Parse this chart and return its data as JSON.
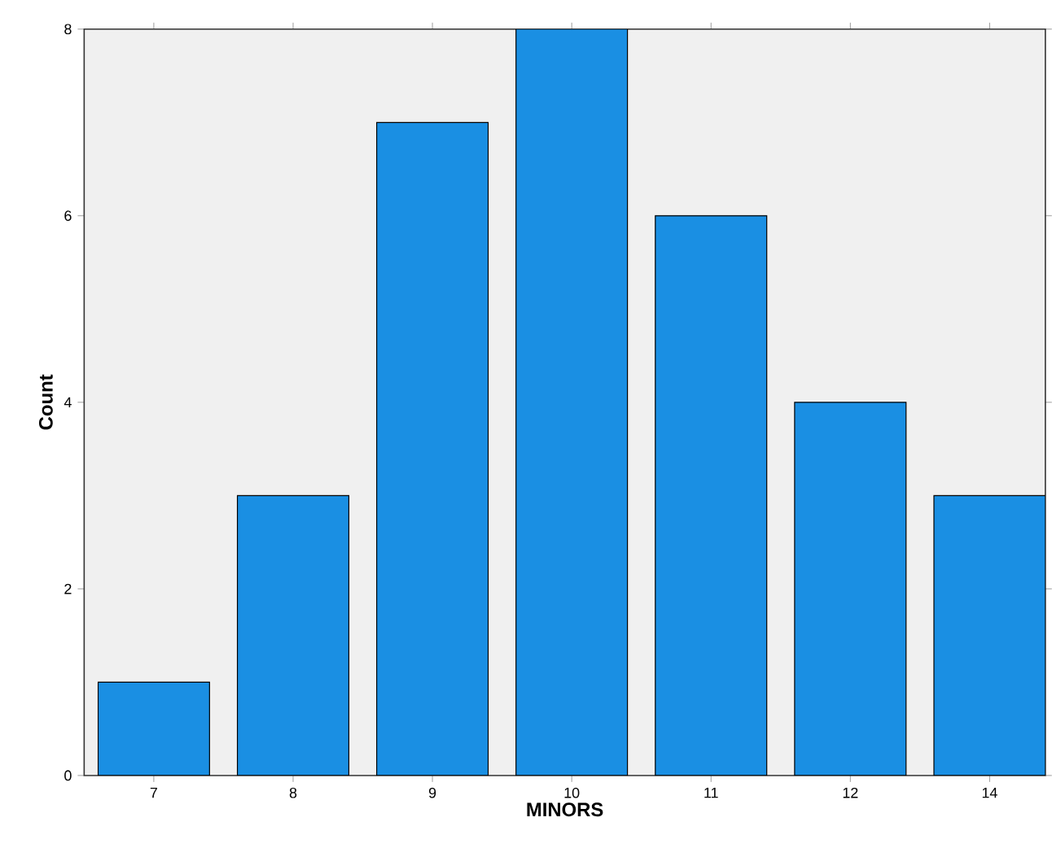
{
  "chart_data": {
    "type": "bar",
    "xlabel": "MINORS",
    "ylabel": "Count",
    "categories": [
      "7",
      "8",
      "9",
      "10",
      "11",
      "12",
      "14"
    ],
    "values": [
      1,
      3,
      7,
      8,
      6,
      4,
      3
    ],
    "color": "#1a8fe3",
    "ylim": [
      0,
      8
    ],
    "yticks": [
      0,
      2,
      4,
      6,
      8
    ]
  }
}
